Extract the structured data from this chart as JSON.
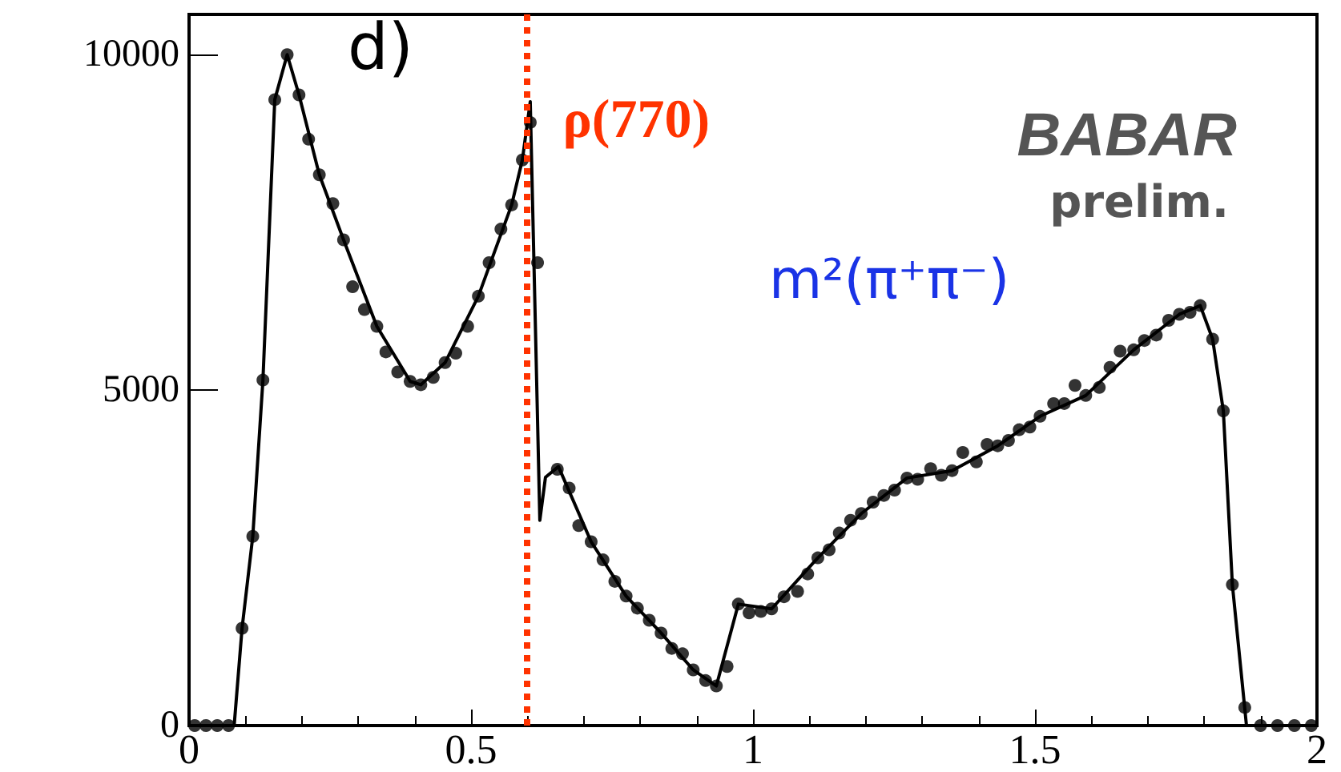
{
  "chart_data": {
    "type": "scatter",
    "annotations": [
      "d)",
      "BABAR",
      "prelim.",
      "m²(π⁺π⁻)"
    ],
    "xlim": [
      0,
      2
    ],
    "xticks": [
      0,
      0.5,
      1,
      1.5,
      2
    ],
    "ylim": [
      0,
      10600
    ],
    "yticks": [
      0,
      5000,
      10000
    ],
    "grid": false,
    "ref_lines": [
      {
        "axis": "x",
        "value": 0.6,
        "label": "ρ(770)",
        "color": "#ff3300",
        "line_style": "dotted"
      }
    ],
    "series": [
      {
        "marker": "circle",
        "color": "#000000",
        "x": [
          0.01,
          0.03,
          0.05,
          0.07,
          0.094,
          0.113,
          0.131,
          0.152,
          0.174,
          0.195,
          0.212,
          0.231,
          0.255,
          0.274,
          0.29,
          0.311,
          0.333,
          0.349,
          0.37,
          0.392,
          0.411,
          0.433,
          0.454,
          0.473,
          0.494,
          0.513,
          0.532,
          0.553,
          0.572,
          0.591,
          0.605,
          0.618,
          0.653,
          0.674,
          0.691,
          0.713,
          0.734,
          0.755,
          0.775,
          0.795,
          0.816,
          0.837,
          0.856,
          0.875,
          0.894,
          0.916,
          0.935,
          0.954,
          0.974,
          0.993,
          1.014,
          1.033,
          1.055,
          1.079,
          1.097,
          1.115,
          1.135,
          1.153,
          1.173,
          1.192,
          1.213,
          1.232,
          1.251,
          1.273,
          1.292,
          1.315,
          1.334,
          1.353,
          1.372,
          1.396,
          1.415,
          1.434,
          1.453,
          1.472,
          1.491,
          1.509,
          1.533,
          1.552,
          1.571,
          1.59,
          1.614,
          1.633,
          1.651,
          1.675,
          1.694,
          1.715,
          1.737,
          1.756,
          1.775,
          1.793,
          1.815,
          1.834,
          1.85,
          1.872,
          1.9,
          1.93,
          1.96,
          1.99
        ],
        "values": [
          0,
          0,
          0,
          0,
          1450,
          2820,
          5150,
          9330,
          10000,
          9400,
          8740,
          8210,
          7780,
          7240,
          6540,
          6200,
          5950,
          5570,
          5270,
          5130,
          5080,
          5190,
          5410,
          5550,
          5950,
          6400,
          6900,
          7400,
          7760,
          8430,
          8990,
          6900,
          3820,
          3540,
          2980,
          2740,
          2470,
          2150,
          1930,
          1750,
          1570,
          1380,
          1150,
          1070,
          830,
          670,
          590,
          880,
          1810,
          1680,
          1700,
          1740,
          1920,
          2000,
          2260,
          2500,
          2620,
          2870,
          3060,
          3160,
          3330,
          3430,
          3510,
          3690,
          3670,
          3830,
          3730,
          3800,
          4070,
          3930,
          4190,
          4170,
          4250,
          4410,
          4450,
          4610,
          4800,
          4800,
          5070,
          4920,
          5040,
          5340,
          5580,
          5600,
          5740,
          5820,
          6040,
          6130,
          6160,
          6260,
          5760,
          4690,
          2100,
          270,
          0,
          0,
          0,
          0
        ]
      },
      {
        "type": "line",
        "marker": "none",
        "line_style": "solid",
        "color": "#000000",
        "x": [
          0,
          0.08,
          0.094,
          0.113,
          0.131,
          0.152,
          0.174,
          0.195,
          0.231,
          0.274,
          0.333,
          0.392,
          0.411,
          0.454,
          0.513,
          0.572,
          0.591,
          0.605,
          0.614,
          0.622,
          0.632,
          0.655,
          0.713,
          0.775,
          0.837,
          0.894,
          0.935,
          0.974,
          1.033,
          1.115,
          1.192,
          1.273,
          1.353,
          1.434,
          1.509,
          1.59,
          1.675,
          1.756,
          1.793,
          1.815,
          1.834,
          1.85,
          1.875,
          2
        ],
        "values": [
          0,
          0,
          1450,
          2820,
          5150,
          9330,
          10000,
          9400,
          8210,
          7240,
          5950,
          5130,
          5080,
          5410,
          6400,
          7760,
          8430,
          9300,
          6000,
          3060,
          3700,
          3860,
          2740,
          1930,
          1380,
          830,
          590,
          1810,
          1740,
          2500,
          3160,
          3690,
          3800,
          4170,
          4610,
          4920,
          5600,
          6130,
          6260,
          5760,
          4690,
          2100,
          0,
          0
        ]
      }
    ]
  }
}
